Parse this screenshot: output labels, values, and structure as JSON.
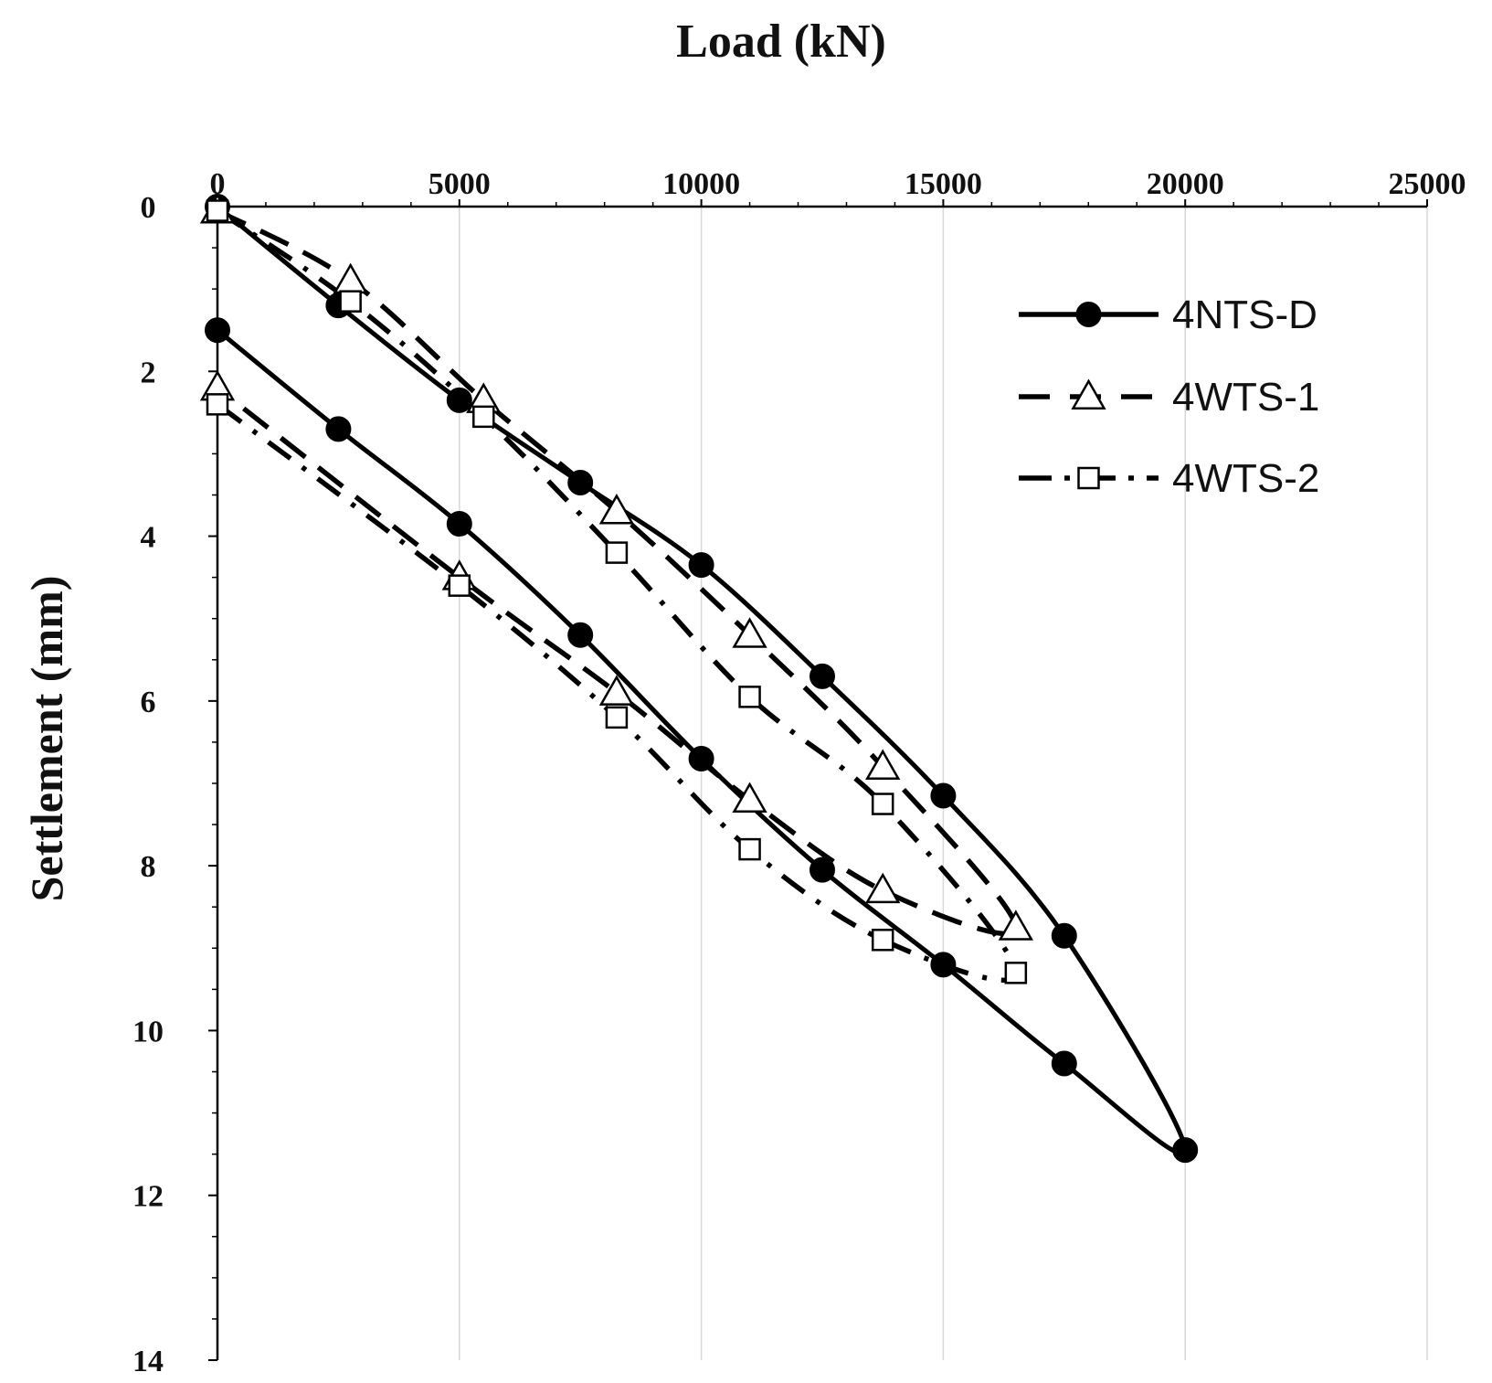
{
  "chart_data": {
    "type": "line",
    "xlabel": "Load (kN)",
    "ylabel": "Settlement (mm)",
    "xlim": [
      0,
      25000
    ],
    "ylim": [
      0,
      14
    ],
    "x_axis_position": "top",
    "y_axis_inverted": true,
    "xticks": [
      "0",
      "5000",
      "10000",
      "15000",
      "20000",
      "25000"
    ],
    "yticks": [
      "0",
      "2",
      "4",
      "6",
      "8",
      "10",
      "12",
      "14"
    ],
    "grid": "vertical",
    "legend_position": "top-right",
    "series": [
      {
        "name": "4NTS-D",
        "marker": "filled-circle",
        "line_style": "solid",
        "points": [
          [
            0,
            0
          ],
          [
            2500,
            1.2
          ],
          [
            5000,
            2.35
          ],
          [
            7500,
            3.35
          ],
          [
            10000,
            4.35
          ],
          [
            12500,
            5.7
          ],
          [
            15000,
            7.15
          ],
          [
            17500,
            8.85
          ],
          [
            20000,
            11.45
          ],
          [
            17500,
            10.4
          ],
          [
            15000,
            9.2
          ],
          [
            12500,
            8.05
          ],
          [
            10000,
            6.7
          ],
          [
            7500,
            5.2
          ],
          [
            5000,
            3.85
          ],
          [
            2500,
            2.7
          ],
          [
            0,
            1.5
          ]
        ]
      },
      {
        "name": "4WTS-1",
        "marker": "open-triangle",
        "line_style": "dashed",
        "points": [
          [
            0,
            0.05
          ],
          [
            2750,
            0.9
          ],
          [
            5500,
            2.35
          ],
          [
            8250,
            3.7
          ],
          [
            11000,
            5.2
          ],
          [
            13750,
            6.8
          ],
          [
            16500,
            8.75
          ],
          [
            13750,
            8.3
          ],
          [
            11000,
            7.2
          ],
          [
            8250,
            5.9
          ],
          [
            5000,
            4.5
          ],
          [
            0,
            2.2
          ]
        ]
      },
      {
        "name": "4WTS-2",
        "marker": "open-square",
        "line_style": "dash-dot",
        "points": [
          [
            0,
            0.05
          ],
          [
            2750,
            1.15
          ],
          [
            5500,
            2.55
          ],
          [
            8250,
            4.2
          ],
          [
            11000,
            5.95
          ],
          [
            13750,
            7.25
          ],
          [
            16500,
            9.3
          ],
          [
            13750,
            8.9
          ],
          [
            11000,
            7.8
          ],
          [
            8250,
            6.2
          ],
          [
            5000,
            4.6
          ],
          [
            0,
            2.4
          ]
        ]
      }
    ]
  }
}
